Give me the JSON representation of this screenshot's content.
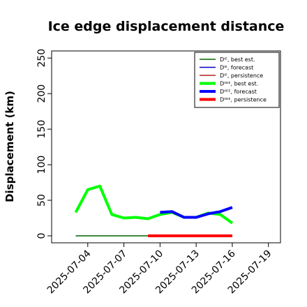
{
  "chart_data": {
    "type": "line",
    "title": "Ice edge displacement distance",
    "ylabel": "Displacement (km)",
    "xlabel": "",
    "ylim": [
      0,
      260
    ],
    "xlim": [
      "2025-07-01",
      "2025-07-20"
    ],
    "yticks": [
      0,
      50,
      100,
      150,
      200,
      250
    ],
    "xticks": [
      "2025-07-04",
      "2025-07-07",
      "2025-07-10",
      "2025-07-13",
      "2025-07-16",
      "2025-07-19"
    ],
    "highlight_tick": "2025-07-10",
    "highlight_color": "#228B22",
    "grid": false,
    "legend_position": "top-right",
    "series": [
      {
        "name": "Dᴵᴱ, best est.",
        "color": "#006400",
        "width": "thin",
        "x": [
          "2025-07-03",
          "2025-07-04",
          "2025-07-05",
          "2025-07-06",
          "2025-07-07",
          "2025-07-08",
          "2025-07-09",
          "2025-07-10",
          "2025-07-11",
          "2025-07-12",
          "2025-07-13",
          "2025-07-14",
          "2025-07-15",
          "2025-07-16"
        ],
        "values": [
          0,
          0,
          0,
          0,
          0,
          0,
          0,
          0,
          0,
          0,
          0,
          0,
          0,
          0
        ]
      },
      {
        "name": "Dᴵᴱ, forecast",
        "color": "#0000CD",
        "width": "thin",
        "x": [
          "2025-07-10",
          "2025-07-16"
        ],
        "values": [
          0,
          0
        ]
      },
      {
        "name": "Dᴵᴱ, persistence",
        "color": "#B22222",
        "width": "thin",
        "x": [
          "2025-07-09",
          "2025-07-16"
        ],
        "values": [
          0,
          0
        ]
      },
      {
        "name": "Dᴵᴵᴱᴱ, best est.",
        "color": "#00FF00",
        "width": "thick",
        "x": [
          "2025-07-03",
          "2025-07-04",
          "2025-07-05",
          "2025-07-06",
          "2025-07-07",
          "2025-07-08",
          "2025-07-09",
          "2025-07-10",
          "2025-07-11",
          "2025-07-12",
          "2025-07-13",
          "2025-07-14",
          "2025-07-15",
          "2025-07-16"
        ],
        "values": [
          33,
          65,
          70,
          30,
          25,
          26,
          24,
          30,
          33,
          26,
          26,
          32,
          30,
          18
        ]
      },
      {
        "name": "Dᴵᴵᴱᴱ, forecast",
        "color": "#0000FF",
        "width": "thick",
        "x": [
          "2025-07-10",
          "2025-07-11",
          "2025-07-12",
          "2025-07-13",
          "2025-07-14",
          "2025-07-15",
          "2025-07-16"
        ],
        "values": [
          33,
          34,
          26,
          26,
          31,
          34,
          40
        ]
      },
      {
        "name": "Dᴵᴵᴱᴱ, persistence",
        "color": "#FF0000",
        "width": "thick",
        "x": [
          "2025-07-09",
          "2025-07-16"
        ],
        "values": [
          0,
          0
        ]
      }
    ]
  }
}
